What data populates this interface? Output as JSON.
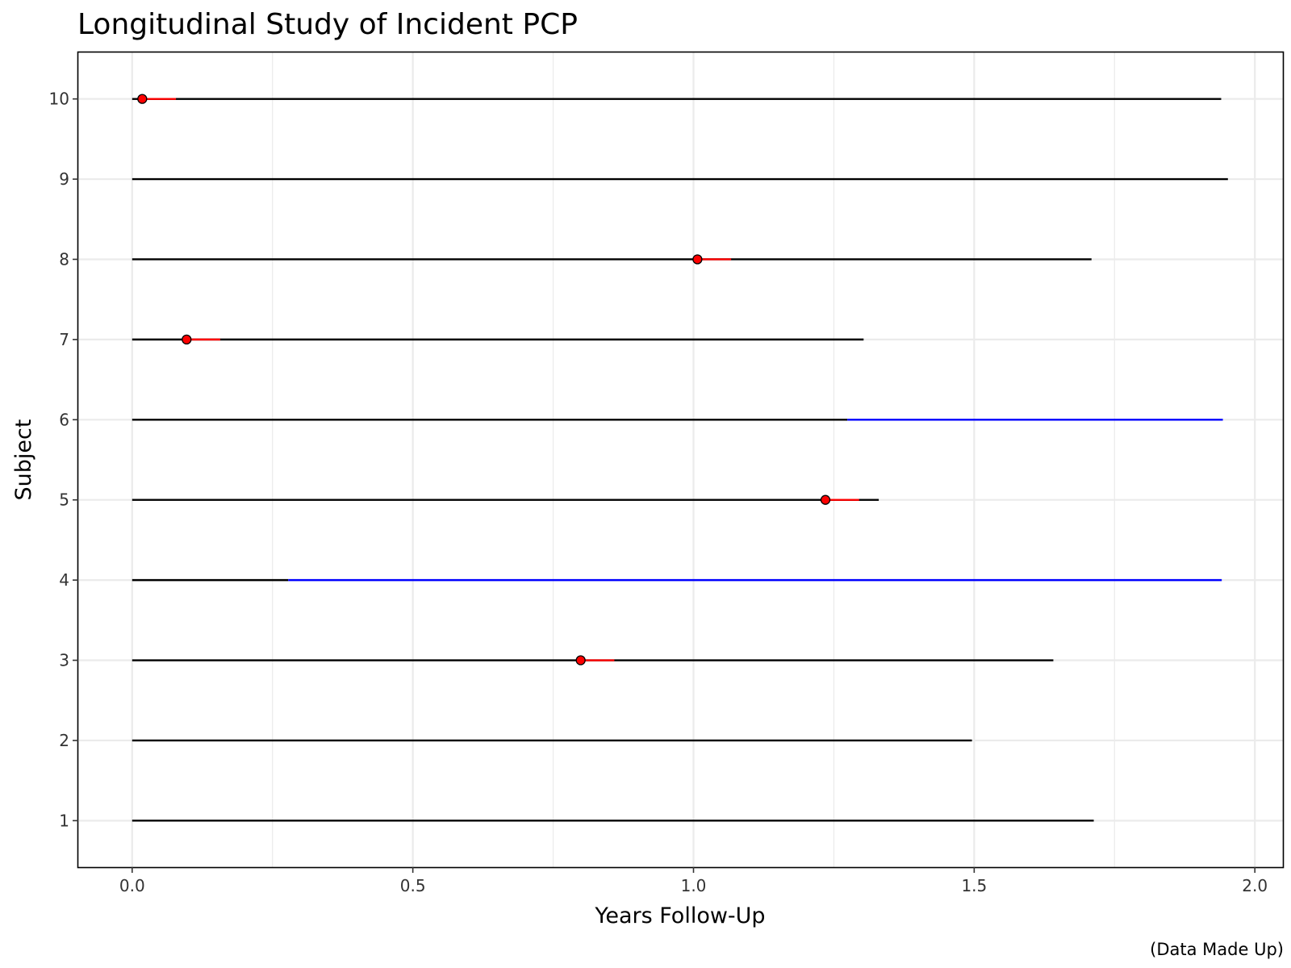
{
  "chart_data": {
    "type": "line",
    "title": "Longitudinal Study of Incident PCP",
    "xlabel": "Years Follow-Up",
    "ylabel": "Subject",
    "caption": "(Data Made Up)",
    "xlim": [
      -0.096,
      2.05
    ],
    "ylim": [
      0.42,
      10.58
    ],
    "x_ticks": [
      0.0,
      0.5,
      1.0,
      1.5,
      2.0
    ],
    "x_tick_labels": [
      "0.0",
      "0.5",
      "1.0",
      "1.5",
      "2.0"
    ],
    "y_ticks": [
      1,
      2,
      3,
      4,
      5,
      6,
      7,
      8,
      9,
      10
    ],
    "y_tick_labels": [
      "1",
      "2",
      "3",
      "4",
      "5",
      "6",
      "7",
      "8",
      "9",
      "10"
    ],
    "grid": true,
    "colors": {
      "followup": "#000000",
      "event_window": "#ff0000",
      "event_point": "#ff0000",
      "censored_tail": "#0000ff",
      "grid": "#ebebeb",
      "panel_border": "#000000"
    },
    "subjects": [
      {
        "subject": 1,
        "start": 0,
        "end": 1.713
      },
      {
        "subject": 2,
        "start": 0,
        "end": 1.496
      },
      {
        "subject": 3,
        "start": 0,
        "end": 1.641,
        "event": 0.799,
        "event_end": 0.859
      },
      {
        "subject": 4,
        "start": 0,
        "end": 0.278,
        "tail_end": 1.941
      },
      {
        "subject": 5,
        "start": 0,
        "end": 1.33,
        "event": 1.235,
        "event_end": 1.295
      },
      {
        "subject": 6,
        "start": 0,
        "end": 1.274,
        "tail_end": 1.943
      },
      {
        "subject": 7,
        "start": 0,
        "end": 1.303,
        "event": 0.097,
        "event_end": 0.157
      },
      {
        "subject": 8,
        "start": 0,
        "end": 1.709,
        "event": 1.007,
        "event_end": 1.067
      },
      {
        "subject": 9,
        "start": 0,
        "end": 1.952
      },
      {
        "subject": 10,
        "start": 0,
        "end": 1.94,
        "event": 0.018,
        "event_end": 0.078
      }
    ]
  }
}
